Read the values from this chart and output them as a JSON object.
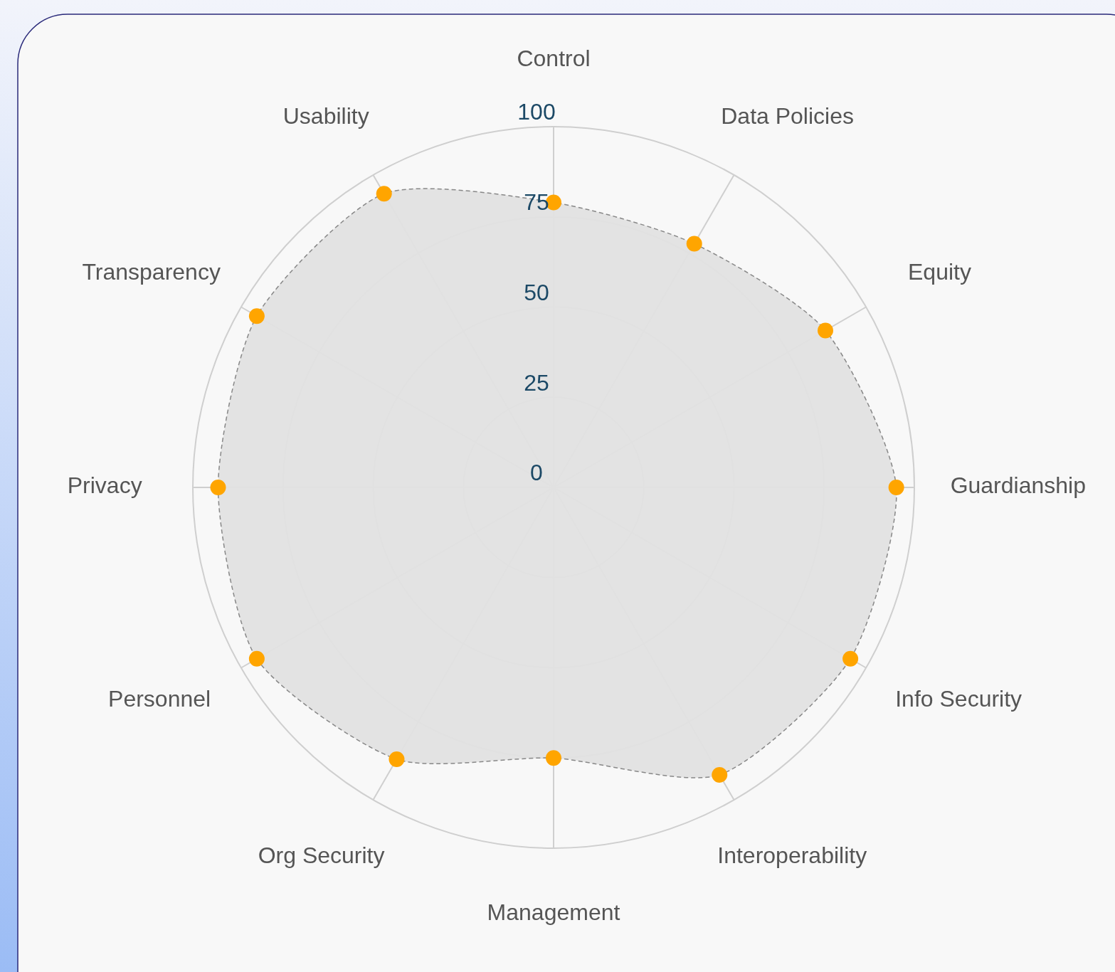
{
  "chart_data": {
    "type": "radar",
    "categories": [
      "Control",
      "Data Policies",
      "Equity",
      "Guardianship",
      "Info Security",
      "Interoperability",
      "Management",
      "Org Security",
      "Personnel",
      "Privacy",
      "Transparency",
      "Usability"
    ],
    "series": [
      {
        "color": "#e2e2e2",
        "values": [
          79,
          78,
          87,
          95,
          95,
          92,
          75,
          87,
          95,
          93,
          95,
          94
        ]
      }
    ],
    "ylim": [
      0,
      100
    ],
    "yticks": [
      0,
      25,
      50,
      75,
      100
    ],
    "grid": true,
    "marker": "circle",
    "line_style": "dashed"
  }
}
